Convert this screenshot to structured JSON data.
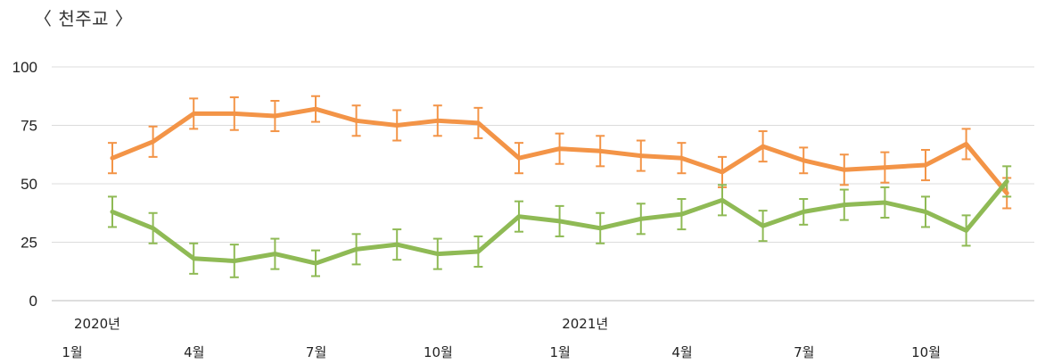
{
  "title": "〈 천주교 〉",
  "chart_data": {
    "type": "line",
    "title": "〈 천주교 〉",
    "ylim": [
      0,
      100
    ],
    "y_ticks": [
      "0",
      "25",
      "50",
      "75",
      "100"
    ],
    "grid": true,
    "x_tick_labels": [
      {
        "index": 0,
        "month": "1월",
        "year": "2020년"
      },
      {
        "index": 3,
        "month": "4월",
        "year": ""
      },
      {
        "index": 6,
        "month": "7월",
        "year": ""
      },
      {
        "index": 9,
        "month": "10월",
        "year": ""
      },
      {
        "index": 12,
        "month": "1월",
        "year": "2021년"
      },
      {
        "index": 15,
        "month": "4월",
        "year": ""
      },
      {
        "index": 18,
        "month": "7월",
        "year": ""
      },
      {
        "index": 21,
        "month": "10월",
        "year": ""
      }
    ],
    "series": [
      {
        "color": "#f39447",
        "values": [
          61,
          68,
          80,
          80,
          79,
          82,
          77,
          75,
          77,
          76,
          61,
          65,
          64,
          62,
          61,
          55,
          66,
          60,
          56,
          57,
          58,
          67,
          46
        ],
        "error": [
          6.5,
          6.5,
          6.5,
          7,
          6.5,
          5.5,
          6.5,
          6.5,
          6.5,
          6.5,
          6.5,
          6.5,
          6.5,
          6.5,
          6.5,
          6.5,
          6.5,
          5.5,
          6.5,
          6.5,
          6.5,
          6.5,
          6.5
        ]
      },
      {
        "color": "#8fba55",
        "values": [
          38,
          31,
          18,
          17,
          20,
          16,
          22,
          24,
          20,
          21,
          36,
          34,
          31,
          35,
          37,
          43,
          32,
          38,
          41,
          42,
          38,
          30,
          51
        ],
        "error": [
          6.5,
          6.5,
          6.5,
          7,
          6.5,
          5.5,
          6.5,
          6.5,
          6.5,
          6.5,
          6.5,
          6.5,
          6.5,
          6.5,
          6.5,
          6.5,
          6.5,
          5.5,
          6.5,
          6.5,
          6.5,
          6.5,
          6.5
        ]
      }
    ]
  }
}
